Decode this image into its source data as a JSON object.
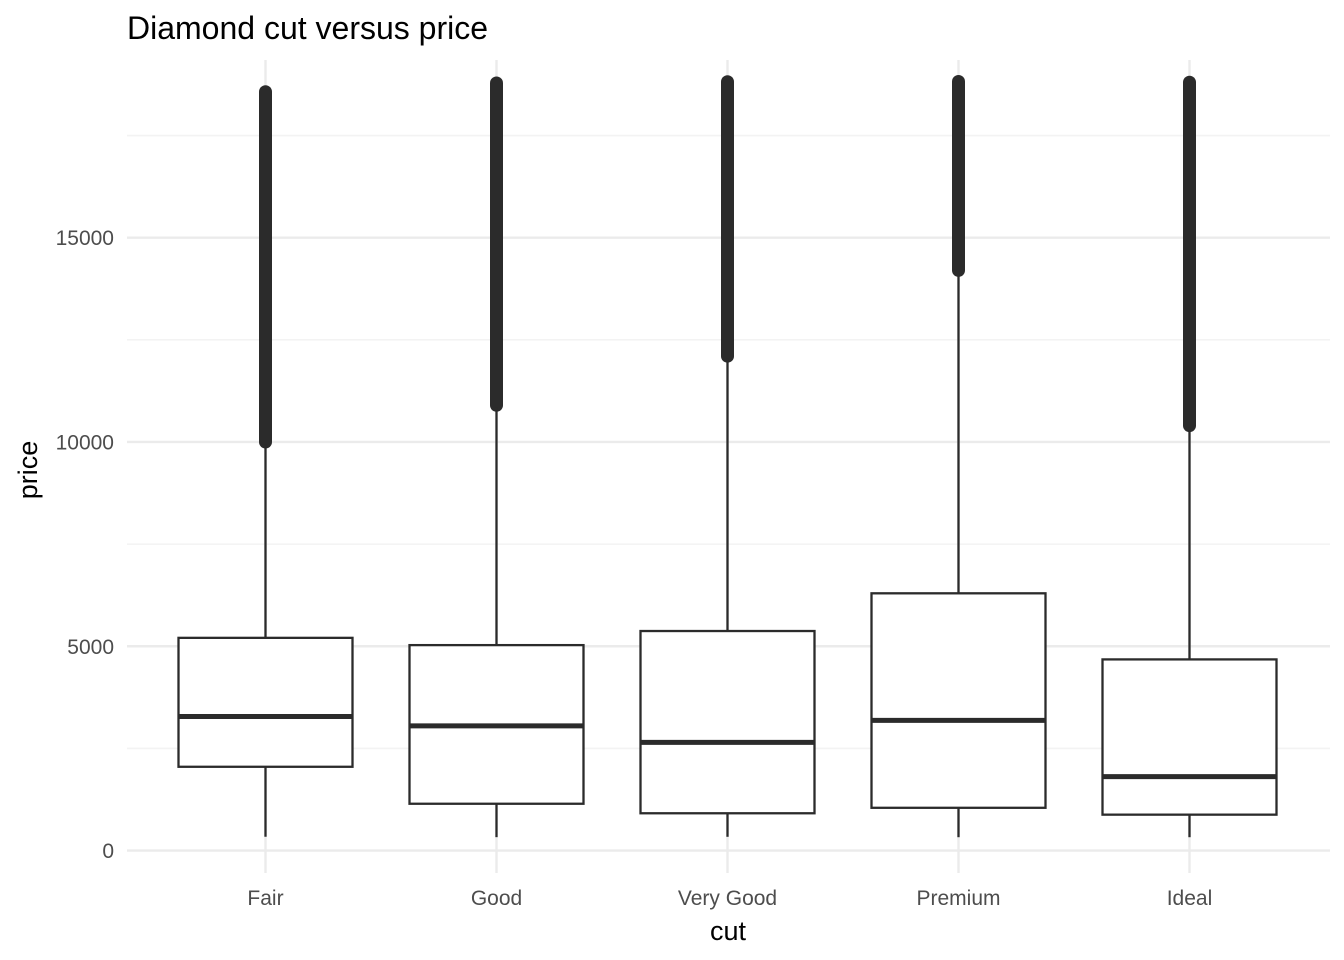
{
  "chart_data": {
    "type": "boxplot",
    "title": "Diamond cut versus price",
    "xlabel": "cut",
    "ylabel": "price",
    "categories": [
      "Fair",
      "Good",
      "Very Good",
      "Premium",
      "Ideal"
    ],
    "ylim": [
      -550,
      19350
    ],
    "y_ticks": [
      0,
      5000,
      10000,
      15000
    ],
    "y_tick_labels": [
      "0",
      "5000",
      "10000",
      "15000"
    ],
    "grid": true,
    "legend": "none",
    "colors": {
      "box_stroke": "#2b2b2b",
      "outlier_fill": "#2b2b2b",
      "grid_major": "#ebebeb",
      "grid_minor": "#f3f3f3"
    },
    "boxes": [
      {
        "category": "Fair",
        "whisker_low": 337,
        "q1": 2050,
        "median": 3282,
        "q3": 5206,
        "whisker_high": 9930,
        "outlier_min": 10000,
        "outlier_max": 18574
      },
      {
        "category": "Good",
        "whisker_low": 327,
        "q1": 1145,
        "median": 3050,
        "q3": 5028,
        "whisker_high": 10850,
        "outlier_min": 10900,
        "outlier_max": 18788
      },
      {
        "category": "Very Good",
        "whisker_low": 336,
        "q1": 912,
        "median": 2648,
        "q3": 5373,
        "whisker_high": 12050,
        "outlier_min": 12100,
        "outlier_max": 18818
      },
      {
        "category": "Premium",
        "whisker_low": 326,
        "q1": 1046,
        "median": 3185,
        "q3": 6296,
        "whisker_high": 14150,
        "outlier_min": 14200,
        "outlier_max": 18823
      },
      {
        "category": "Ideal",
        "whisker_low": 326,
        "q1": 878,
        "median": 1810,
        "q3": 4678,
        "whisker_high": 10350,
        "outlier_min": 10400,
        "outlier_max": 18806
      }
    ]
  }
}
